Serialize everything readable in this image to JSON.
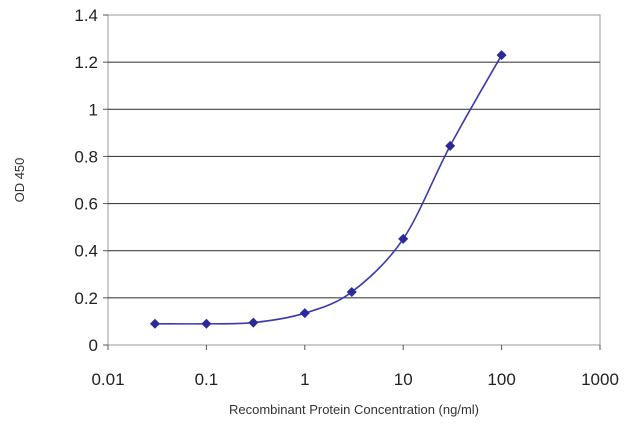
{
  "chart_data": {
    "type": "scatter",
    "title": "",
    "xlabel": "Recombinant Protein Concentration (ng/ml)",
    "ylabel": "OD 450",
    "xscale": "log",
    "xlim": [
      0.01,
      1000
    ],
    "ylim": [
      0,
      1.4
    ],
    "xticks": [
      0.01,
      0.1,
      1,
      10,
      100,
      1000
    ],
    "xtick_labels": [
      "0.01",
      "0.1",
      "1",
      "10",
      "100",
      "1000"
    ],
    "yticks": [
      0,
      0.2,
      0.4,
      0.6,
      0.8,
      1,
      1.2,
      1.4
    ],
    "ytick_labels": [
      "0",
      "0.2",
      "0.4",
      "0.6",
      "0.8",
      "1",
      "1.2",
      "1.4"
    ],
    "grid": "horizontal",
    "legend": "none",
    "series": [
      {
        "color": "#2a2a9a",
        "marker": "diamond",
        "line": "smooth",
        "x": [
          0.03,
          0.1,
          0.3,
          1,
          3,
          10,
          30,
          100
        ],
        "y": [
          0.09,
          0.09,
          0.095,
          0.135,
          0.225,
          0.45,
          0.845,
          1.23
        ]
      }
    ]
  }
}
